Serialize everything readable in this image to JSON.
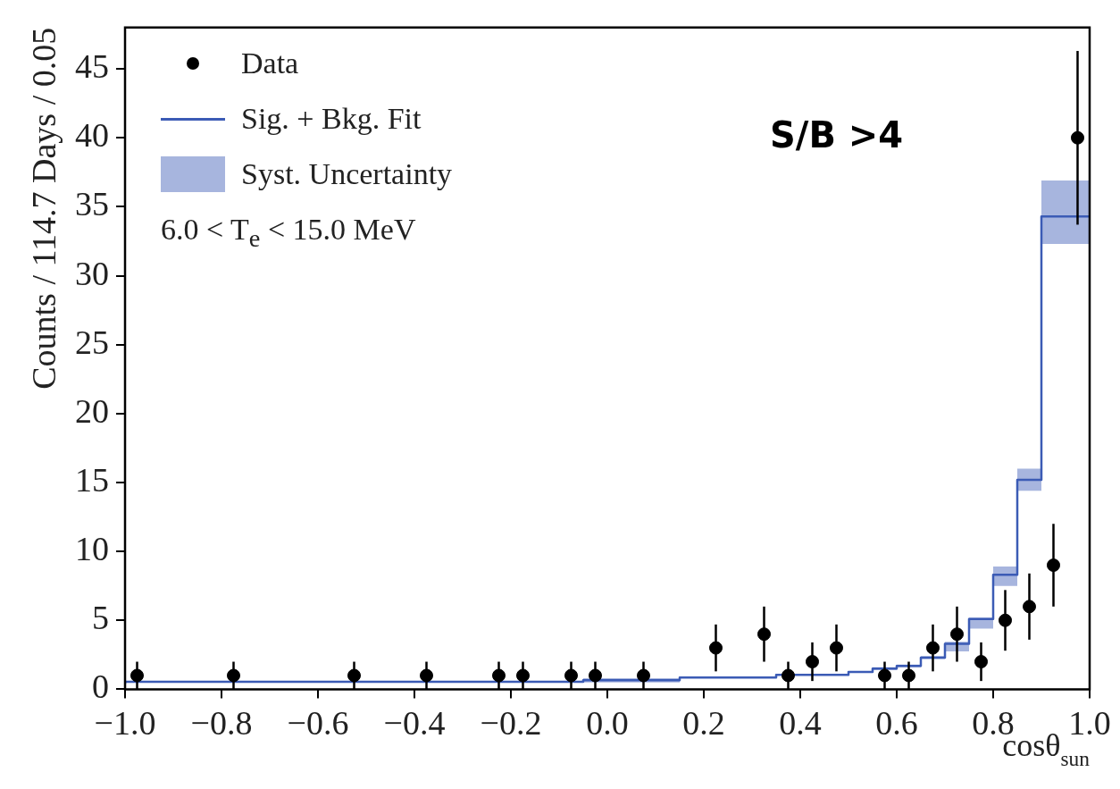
{
  "chart_data": {
    "type": "scatter",
    "xlabel": "cosθ$_{sun}$",
    "ylabel": "Counts / 114.7 Days / 0.05",
    "annotations": [
      "6.0 < T$_{e}$ < 15.0 MeV",
      "S/B >4",
      "Syst. Uncertainty"
    ],
    "xlim": [
      -1,
      1
    ],
    "ylim": [
      0,
      48
    ],
    "xticks": [
      {
        "value": -1,
        "label": "−1.0"
      },
      {
        "value": -0.8,
        "label": "−0.8"
      },
      {
        "value": -0.6,
        "label": "−0.6"
      },
      {
        "value": -0.4,
        "label": "−0.4"
      },
      {
        "value": -0.2,
        "label": "−0.2"
      },
      {
        "value": 0,
        "label": "0.0"
      },
      {
        "value": 0.2,
        "label": "0.2"
      },
      {
        "value": 0.4,
        "label": "0.4"
      },
      {
        "value": 0.6,
        "label": "0.6"
      },
      {
        "value": 0.8,
        "label": "0.8"
      },
      {
        "value": 1,
        "label": "1.0"
      }
    ],
    "yticks": [
      0,
      5,
      10,
      15,
      20,
      25,
      30,
      35,
      40,
      45
    ],
    "legend": "top left",
    "series": [
      {
        "name": "Data",
        "marker": "circle",
        "color": "#000000",
        "x": [
          -0.975,
          -0.775,
          -0.525,
          -0.375,
          -0.225,
          -0.175,
          -0.075,
          -0.025,
          0.075,
          0.225,
          0.325,
          0.375,
          0.425,
          0.475,
          0.575,
          0.625,
          0.675,
          0.725,
          0.775,
          0.825,
          0.875,
          0.925,
          0.975
        ],
        "values": [
          1,
          1,
          1,
          1,
          1,
          1,
          1,
          1,
          1,
          3,
          4,
          1,
          2,
          3,
          1,
          1,
          3,
          4,
          2,
          5,
          6,
          9,
          40
        ],
        "errors": [
          1,
          1,
          1,
          1,
          1,
          1,
          1,
          1,
          1,
          1.7,
          2,
          1,
          1.4,
          1.7,
          1,
          1,
          1.7,
          2,
          1.4,
          2.2,
          2.4,
          3,
          6.3
        ]
      },
      {
        "name": "Sig. + Bkg. Fit",
        "type": "step",
        "color": "#3b5bb5",
        "x": [
          -1,
          -0.05,
          0.15,
          0.35,
          0.5,
          0.55,
          0.6,
          0.65,
          0.7,
          0.75,
          0.8,
          0.85,
          0.9,
          0.95,
          1
        ],
        "values": [
          0.4,
          0.55,
          0.65,
          0.85,
          1.05,
          1.25,
          1.5,
          1.7,
          2.3,
          3.3,
          5.1,
          8.3,
          15.2,
          34.3,
          34.3
        ],
        "lower": [
          0.35,
          0.5,
          0.5,
          0.8,
          1.0,
          1.2,
          1.4,
          1.6,
          2.2,
          2.75,
          4.4,
          7.5,
          14.4,
          32.3,
          32.3
        ],
        "upper": [
          0.45,
          0.6,
          0.8,
          0.9,
          1.1,
          1.3,
          1.6,
          1.8,
          2.4,
          3.45,
          5.2,
          8.9,
          16.0,
          36.9,
          36.9
        ]
      }
    ]
  }
}
